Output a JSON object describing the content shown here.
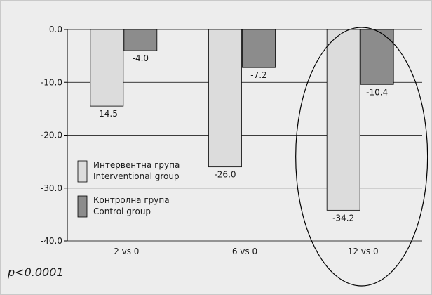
{
  "chart_data": {
    "type": "bar",
    "categories": [
      "2 vs 0",
      "6 vs 0",
      "12 vs 0"
    ],
    "series": [
      {
        "name": "Интервентна група Interventional group",
        "name_lines": [
          "Интервентна група",
          "Interventional group"
        ],
        "values": [
          -14.5,
          -26.0,
          -34.2
        ],
        "color": "#dcdcdc"
      },
      {
        "name": "Контролна група Control group",
        "name_lines": [
          "Контролна група",
          "Control group"
        ],
        "values": [
          -4.0,
          -7.2,
          -10.4
        ],
        "color": "#8c8c8c"
      }
    ],
    "value_labels": [
      [
        "-14.5",
        "-26.0",
        "-34.2"
      ],
      [
        "-4.0",
        "-7.2",
        "-10.4"
      ]
    ],
    "y_ticks": [
      "0.0",
      "-10.0",
      "-20.0",
      "-30.0",
      "-40.0"
    ],
    "ylim": [
      -40,
      0
    ],
    "grid": true,
    "legend_position": "left",
    "highlight": "12 vs 0",
    "annotation": "p<0.0001"
  }
}
